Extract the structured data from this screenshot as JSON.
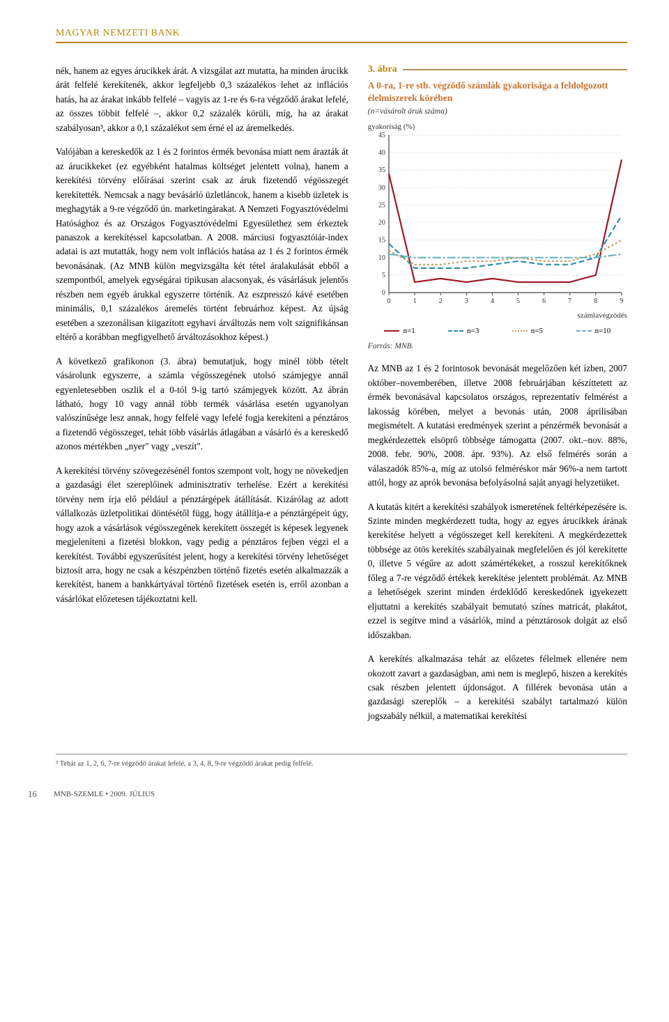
{
  "header": {
    "title": "MAGYAR NEMZETI BANK"
  },
  "leftColumn": {
    "p1": "nék, hanem az egyes árucikkek árát. A vizsgálat azt mutatta, ha minden árucikk árát felfelé kerekítenék, akkor legfeljebb 0,3 százalékos lehet az inflációs hatás, ha az árakat inkább felfelé – vagyis az 1-re és 6-ra végződő árakat lefelé, az összes többit felfelé –, akkor 0,2 százalék körüli, míg, ha az árakat szabályosan³, akkor a 0,1 százalékot sem érné el az áremelkedés.",
    "p2": "Valójában a kereskedők az 1 és 2 forintos érmék bevonása miatt nem árazták át az árucikkeket (ez egyébként hatalmas költséget jelentett volna), hanem a kerekítési törvény előírásai szerint csak az áruk fizetendő végösszegét kerekítették. Nemcsak a nagy bevásárló üzletláncok, hanem a kisebb üzletek is meghagyták a 9-re végződő ún. marketingárakat. A Nemzeti Fogyasztóvédelmi Hatósághoz és az Országos Fogyasztóvédelmi Egyesülethez sem érkeztek panaszok a kerekítéssel kapcsolatban. A 2008. márciusi fogyasztóiár-index adatai is azt mutatták, hogy nem volt inflációs hatása az 1 és 2 forintos érmék bevonásának. (Az MNB külön megvizsgálta két tétel áralakulását ebből a szempontból, amelyek egységárai tipikusan alacsonyak, és vásárlásuk jelentős részben nem egyéb árukkal egyszerre történik. Az eszpresszó kávé esetében minimális, 0,1 százalékos áremelés történt februárhoz képest. Az újság esetében a szezonálisan kiigazított egyhavi árváltozás nem volt szignifikánsan eltérő a korábban megfigyelhető árváltozásokhoz képest.)",
    "p3": "A következő grafikonon (3. ábra) bemutatjuk, hogy minél több tételt vásárolunk egyszerre, a számla végösszegének utolsó számjegye annál egyenletesebben oszlik el a 0-tól 9-ig tartó számjegyek között. Az ábrán látható, hogy 10 vagy annál több termék vásárlása esetén ugyanolyan valószínűsége lesz annak, hogy felfelé vagy lefelé fogja kerekíteni a pénztáros a fizetendő végösszeget, tehát több vásárlás átlagában a vásárló és a kereskedő azonos mértékben „nyer\" vagy „veszít\".",
    "p4": "A kerekítési törvény szövegezésénél fontos szempont volt, hogy ne növekedjen a gazdasági élet szereplőinek adminisztratív terhelése. Ezért a kerekítési törvény nem írja elő például a pénztárgépek átállítását. Kizárólag az adott vállalkozás üzletpolitikai döntésétől függ, hogy átállítja-e a pénztárgépeit úgy, hogy azok a vásárlások végösszegének kerekített összegét is képesek legyenek megjeleníteni a fizetési blokkon, vagy pedig a pénztáros fejben végzi el a kerekítést. További egyszerűsítést jelent, hogy a kerekítési törvény lehetőséget biztosít arra, hogy ne csak a készpénzben történő fizetés esetén alkalmazzák a kerekítést, hanem a bankkártyával történő fizetések esetén is, erről azonban a vásárlókat előzetesen tájékoztatni kell."
  },
  "figure": {
    "number": "3. ábra",
    "subtitle": "A 0-ra, 1-re stb. végződő számlák gyakorisága a feldolgozott élelmiszerek körében",
    "note": "(n=vásárolt áruk száma)",
    "ylabel": "gyakoriság (%)",
    "xlabel": "számlavégződés",
    "source": "Forrás: MNB.",
    "type": "line",
    "ylim": [
      0,
      45
    ],
    "ytick_step": 5,
    "xlim": [
      0,
      9
    ],
    "xtick_step": 1,
    "xticks": [
      0,
      1,
      2,
      3,
      4,
      5,
      6,
      7,
      8,
      9
    ],
    "yticks": [
      0,
      5,
      10,
      15,
      20,
      25,
      30,
      35,
      40,
      45
    ],
    "background_color": "#ffffff",
    "grid_color": "#cccccc",
    "grid_style": "dotted",
    "axis_color": "#444444",
    "label_fontsize": 11,
    "tick_fontsize": 10,
    "line_width": 2.2,
    "series": [
      {
        "name": "n=1",
        "color": "#a01820",
        "dash": "solid",
        "values": [
          34,
          3,
          4,
          3,
          4,
          3,
          3,
          3,
          5,
          38
        ]
      },
      {
        "name": "n=3",
        "color": "#2d8fb0",
        "dash": "8 4",
        "values": [
          14,
          7,
          7,
          7,
          8,
          9,
          8,
          8,
          10,
          22
        ]
      },
      {
        "name": "n=5",
        "color": "#c99b5f",
        "dash": "3 3",
        "values": [
          12,
          8,
          8,
          9,
          9,
          10,
          9,
          9,
          11,
          15
        ]
      },
      {
        "name": "n=10",
        "color": "#6fb6c6",
        "dash": "12 3 3 3",
        "values": [
          11,
          10,
          10,
          10,
          10,
          10,
          10,
          10,
          10,
          11
        ]
      }
    ],
    "legend_items": [
      {
        "label": "n=1",
        "color": "#a01820",
        "style": "solid"
      },
      {
        "label": "n=3",
        "color": "#2d8fb0",
        "style": "dashed"
      },
      {
        "label": "n=5",
        "color": "#c99b5f",
        "style": "dotted"
      },
      {
        "label": "n=10",
        "color": "#6fb6c6",
        "style": "dashdot"
      }
    ]
  },
  "rightColumn": {
    "p1": "Az MNB az 1 és 2 forintosok bevonását megelőzően két ízben, 2007 október–novemberében, illetve 2008 februárjában készíttetett az érmék bevonásával kapcsolatos országos, reprezentatív felmérést a lakosság körében, melyet a bevonás után, 2008 áprilisában megismételt. A kutatási eredmények szerint a pénzérmék bevonását a megkérdezettek elsöprő többsége támogatta (2007. okt.–nov. 88%, 2008. febr. 90%, 2008. ápr. 93%). Az első felmérés során a válaszadók 85%-a, míg az utolsó felméréskor már 96%-a nem tartott attól, hogy az aprók bevonása befolyásolná saját anyagi helyzetüket.",
    "p2": "A kutatás kitért a kerekítési szabályok ismeretének feltérképezésére is. Szinte minden megkérdezett tudta, hogy az egyes árucikkek árának kerekítése helyett a végösszeget kell kerekíteni. A megkérdezettek többsége az ötös kerekítés szabályainak megfelelően és jól kerekítette 0, illetve 5 végűre az adott számértékeket, a rosszul kerekítőknek főleg a 7-re végződő értékek kerekítése jelentett problémát. Az MNB a lehetőségek szerint minden érdeklődő kereskedőnek igyekezett eljuttatni a kerekítés szabályait bemutató színes matricát, plakátot, ezzel is segítve mind a vásárlók, mind a pénztárosok dolgát az első időszakban.",
    "p3": "A kerekítés alkalmazása tehát az előzetes félelmek ellenére nem okozott zavart a gazdaságban, ami nem is meglepő, hiszen a kerekítés csak részben jelentett újdonságot. A fillérek bevonása után a gazdasági szereplők – a kerekítési szabályt tartalmazó külön jogszabály nélkül, a matematikai kerekítési"
  },
  "footnote": {
    "text": "³ Tehát az 1, 2, 6, 7-re végződő árakat lefelé, a 3, 4, 8, 9-re végződő árakat pedig felfelé."
  },
  "footer": {
    "page": "16",
    "journal": "MNB-SZEMLE • 2009. JÚLIUS"
  }
}
